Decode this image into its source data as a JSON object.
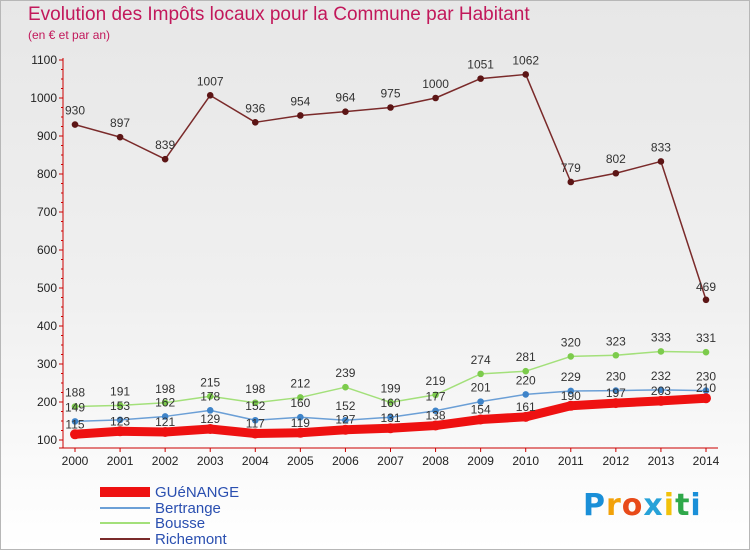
{
  "chart_data": {
    "type": "line",
    "title": "Evolution des Impôts locaux pour la Commune par Habitant",
    "subtitle": "(en € et par an)",
    "x": [
      "2000",
      "2001",
      "2002",
      "2003",
      "2004",
      "2005",
      "2006",
      "2007",
      "2008",
      "2009",
      "2010",
      "2011",
      "2012",
      "2013",
      "2014"
    ],
    "ylim": [
      100,
      1100
    ],
    "yticks": [
      100,
      200,
      300,
      400,
      500,
      600,
      700,
      800,
      900,
      1000,
      1100
    ],
    "ytick_labels": [
      "100",
      "200",
      "300",
      "400",
      "500",
      "600",
      "700",
      "800",
      "900",
      "1000",
      "1100"
    ],
    "grid": false,
    "legend_position": "bottom-left",
    "series": [
      {
        "name": "GUéNANGE",
        "color": "#ee1111",
        "marker_color": "#ee1111",
        "values": [
          115,
          123,
          121,
          129,
          117,
          119,
          127,
          131,
          138,
          154,
          161,
          190,
          197,
          203,
          210
        ],
        "labels": [
          "115",
          "123",
          "121",
          "129",
          "117",
          "119",
          "127",
          "131",
          "138",
          "154",
          "161",
          "190",
          "197",
          "203",
          "210"
        ]
      },
      {
        "name": "Bertrange",
        "color": "#6b9fd6",
        "marker_color": "#3f84c9",
        "values": [
          149,
          153,
          162,
          178,
          152,
          160,
          152,
          160,
          177,
          201,
          220,
          229,
          230,
          232,
          230
        ],
        "labels": [
          "149",
          "153",
          "162",
          "178",
          "152",
          "160",
          "152",
          "160",
          "177",
          "201",
          "220",
          "229",
          "230",
          "232",
          "230"
        ]
      },
      {
        "name": "Bousse",
        "color": "#a3e07a",
        "marker_color": "#7ccb4c",
        "values": [
          188,
          191,
          198,
          215,
          198,
          212,
          239,
          199,
          219,
          274,
          281,
          320,
          323,
          333,
          331
        ],
        "labels": [
          "188",
          "191",
          "198",
          "215",
          "198",
          "212",
          "239",
          "199",
          "219",
          "274",
          "281",
          "320",
          "323",
          "333",
          "331"
        ]
      },
      {
        "name": "Richemont",
        "color": "#7a2a2a",
        "marker_color": "#5c1515",
        "values": [
          930,
          897,
          839,
          1007,
          936,
          954,
          964,
          975,
          1000,
          1051,
          1062,
          779,
          802,
          833,
          469
        ],
        "labels": [
          "930",
          "897",
          "839",
          "1007",
          "936",
          "954",
          "964",
          "975",
          "1000",
          "1051",
          "1062",
          "779",
          "802",
          "833",
          "469"
        ]
      }
    ]
  },
  "brand": {
    "letters": [
      "P",
      "r",
      "o",
      "x",
      "i",
      "t",
      "i"
    ],
    "colors": [
      "#1a8fd8",
      "#f2a20a",
      "#e84b1a",
      "#27a2d8",
      "#f2c20a",
      "#2fa84a",
      "#1a8fd8"
    ]
  }
}
